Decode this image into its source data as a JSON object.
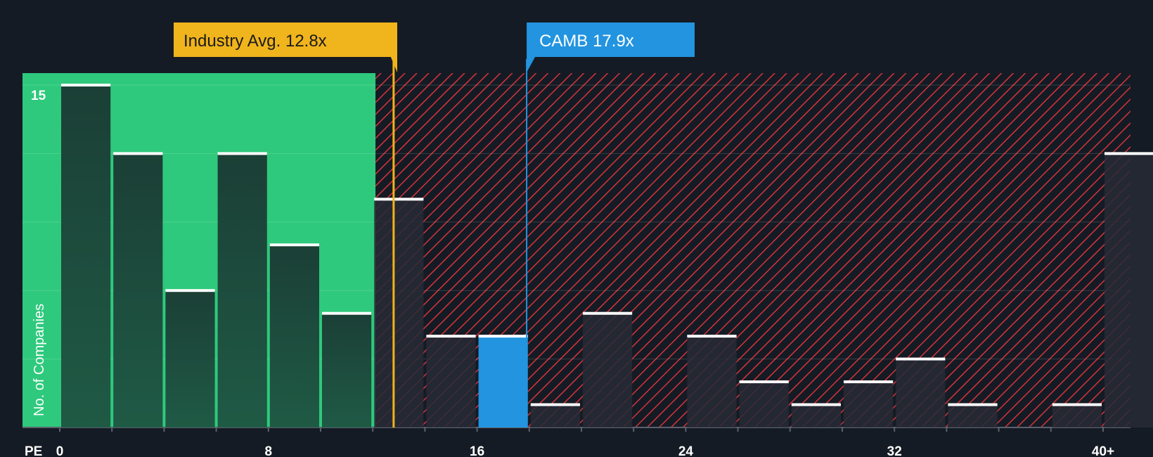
{
  "chart_data": {
    "type": "bar",
    "title": "",
    "xlabel": "PE",
    "ylabel": "No. of Companies",
    "xlim": [
      0,
      41
    ],
    "ylim": [
      0,
      15.5
    ],
    "bin_width": 2,
    "x_ticks": [
      "0",
      "8",
      "16",
      "24",
      "32",
      "40+"
    ],
    "y_ticks": [
      "15"
    ],
    "bins": [
      {
        "start": 0,
        "value": 15
      },
      {
        "start": 2,
        "value": 12
      },
      {
        "start": 4,
        "value": 6
      },
      {
        "start": 6,
        "value": 12
      },
      {
        "start": 8,
        "value": 8
      },
      {
        "start": 10,
        "value": 5
      },
      {
        "start": 12,
        "value": 10
      },
      {
        "start": 14,
        "value": 4
      },
      {
        "start": 16,
        "value": 4,
        "highlight": true
      },
      {
        "start": 18,
        "value": 1
      },
      {
        "start": 20,
        "value": 5
      },
      {
        "start": 22,
        "value": 0
      },
      {
        "start": 24,
        "value": 4
      },
      {
        "start": 26,
        "value": 2
      },
      {
        "start": 28,
        "value": 1
      },
      {
        "start": 30,
        "value": 2
      },
      {
        "start": 32,
        "value": 3
      },
      {
        "start": 34,
        "value": 1
      },
      {
        "start": 36,
        "value": 0
      },
      {
        "start": 38,
        "value": 1
      },
      {
        "start": 40,
        "value": 12
      }
    ],
    "industry_avg": {
      "value": 12.8,
      "label": "Industry Avg. 12.8x",
      "color": "#f0b41c"
    },
    "company": {
      "value": 17.9,
      "label": "CAMB 17.9x",
      "color": "#2394e0"
    },
    "colors": {
      "background": "#151b24",
      "green_zone": "#2ec97c",
      "green_bar": "#1c4a3c",
      "red_hatch": "#d6333c",
      "dark_bar": "#262a36",
      "highlight_bar": "#2394e0",
      "cap": "#ffffff"
    }
  }
}
